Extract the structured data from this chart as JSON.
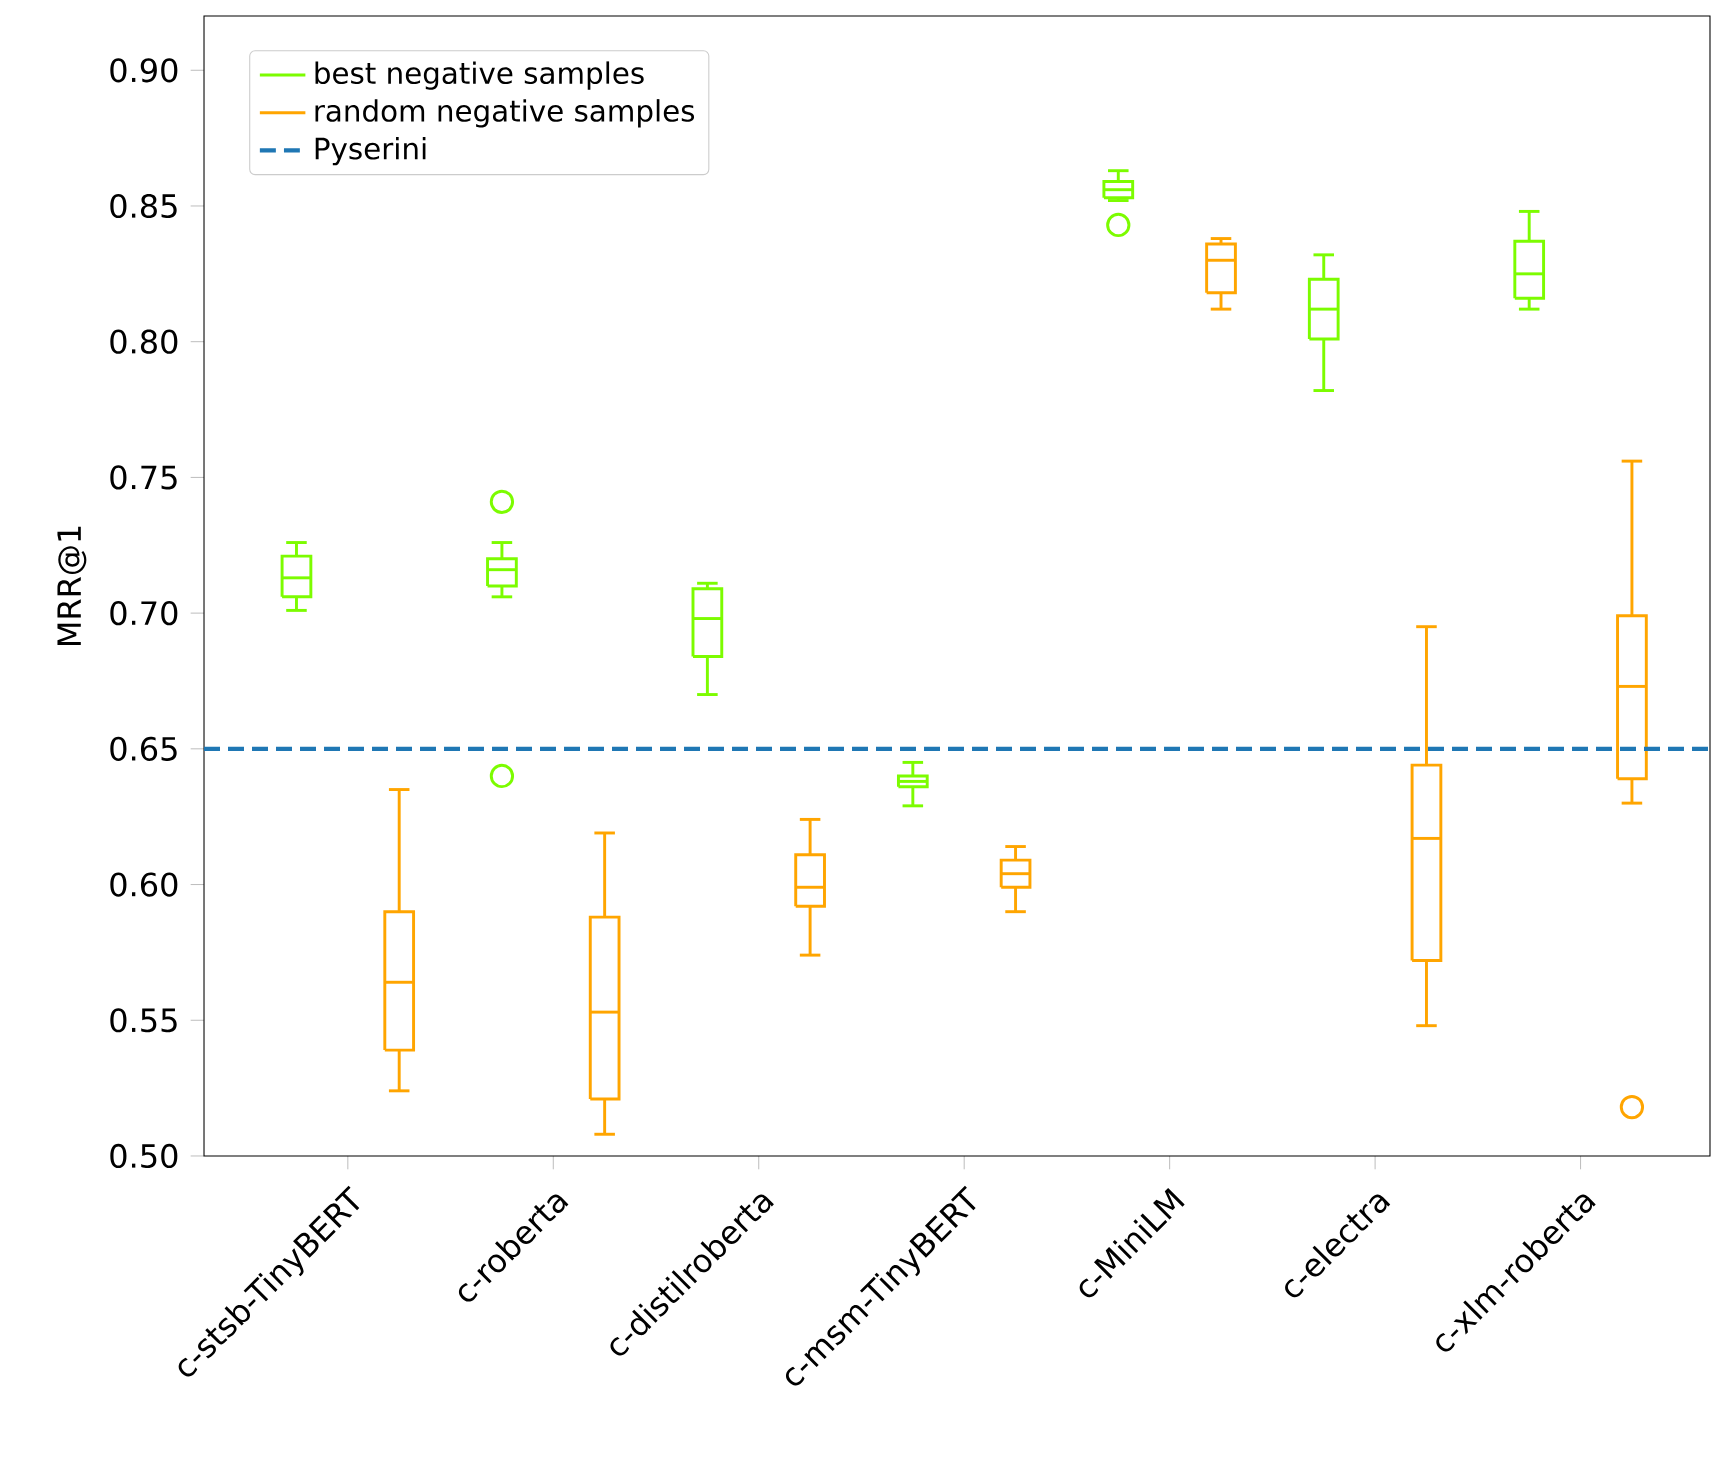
{
  "chart_data": {
    "type": "box",
    "ylabel": "MRR@1",
    "categories": [
      "c-stsb-TinyBERT",
      "c-roberta",
      "c-distilroberta",
      "c-msm-TinyBERT",
      "c-MiniLM",
      "c-electra",
      "c-xlm-roberta"
    ],
    "series": [
      {
        "name": "best negative samples",
        "color": "#7cfc00",
        "boxes": [
          {
            "low": 0.701,
            "q1": 0.706,
            "median": 0.713,
            "q3": 0.721,
            "high": 0.726
          },
          {
            "low": 0.706,
            "q1": 0.71,
            "median": 0.716,
            "q3": 0.72,
            "high": 0.726,
            "outliers": [
              0.741,
              0.64
            ]
          },
          {
            "low": 0.67,
            "q1": 0.684,
            "median": 0.698,
            "q3": 0.709,
            "high": 0.711
          },
          {
            "low": 0.629,
            "q1": 0.636,
            "median": 0.638,
            "q3": 0.64,
            "high": 0.645
          },
          {
            "low": 0.852,
            "q1": 0.853,
            "median": 0.856,
            "q3": 0.859,
            "high": 0.863,
            "outliers": [
              0.843
            ]
          },
          {
            "low": 0.782,
            "q1": 0.801,
            "median": 0.812,
            "q3": 0.823,
            "high": 0.832
          },
          {
            "low": 0.812,
            "q1": 0.816,
            "median": 0.825,
            "q3": 0.837,
            "high": 0.848
          }
        ]
      },
      {
        "name": "random negative samples",
        "color": "#ffa500",
        "boxes": [
          {
            "low": 0.524,
            "q1": 0.539,
            "median": 0.564,
            "q3": 0.59,
            "high": 0.635
          },
          {
            "low": 0.508,
            "q1": 0.521,
            "median": 0.553,
            "q3": 0.588,
            "high": 0.619
          },
          {
            "low": 0.574,
            "q1": 0.592,
            "median": 0.599,
            "q3": 0.611,
            "high": 0.624
          },
          {
            "low": 0.59,
            "q1": 0.599,
            "median": 0.604,
            "q3": 0.609,
            "high": 0.614
          },
          {
            "low": 0.812,
            "q1": 0.818,
            "median": 0.83,
            "q3": 0.836,
            "high": 0.838
          },
          {
            "low": 0.548,
            "q1": 0.572,
            "median": 0.617,
            "q3": 0.644,
            "high": 0.695
          },
          {
            "low": 0.63,
            "q1": 0.639,
            "median": 0.673,
            "q3": 0.699,
            "high": 0.756,
            "outliers": [
              0.518
            ]
          }
        ]
      }
    ],
    "ref_lines": [
      {
        "axis": "y",
        "value": 0.65,
        "label": "Pyserini",
        "color": "#1f77b4",
        "line_style": "dashed"
      }
    ],
    "ylim": [
      0.5,
      0.92
    ],
    "yticks": [
      {
        "value": 0.5,
        "label": "0.50"
      },
      0.55,
      {
        "value": 0.6,
        "label": "0.60"
      },
      0.65,
      {
        "value": 0.7,
        "label": "0.70"
      },
      0.75,
      {
        "value": 0.8,
        "label": "0.80"
      },
      0.85,
      {
        "value": 0.9,
        "label": "0.90"
      }
    ],
    "legend": "top left",
    "grid": false
  }
}
